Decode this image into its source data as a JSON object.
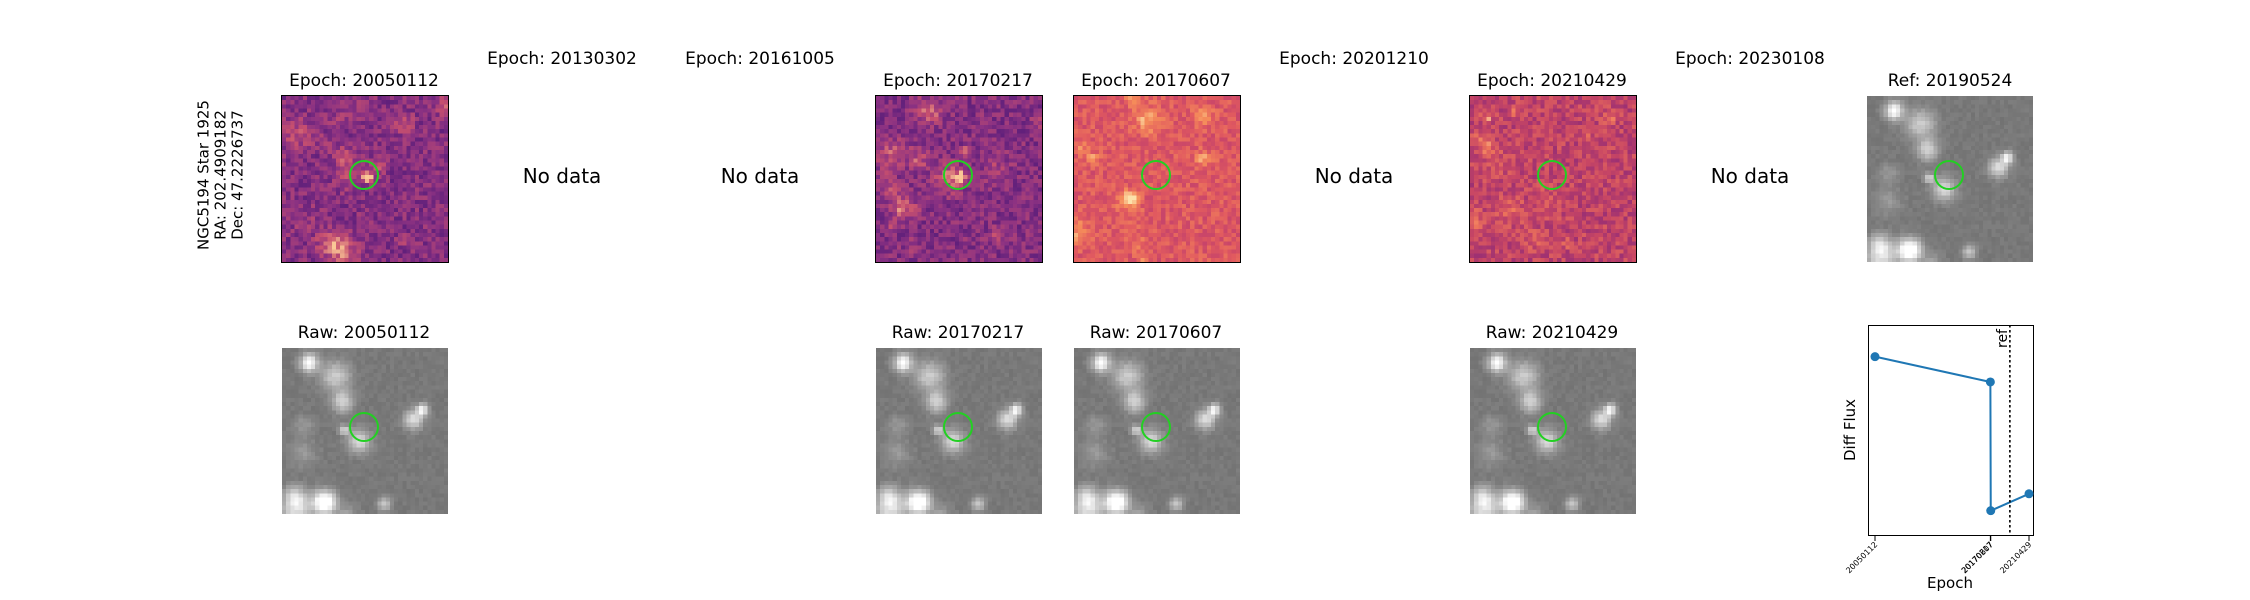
{
  "star": {
    "name": "NGC5194 Star 1925",
    "ra": "RA: 202.4909182",
    "dec": "Dec: 47.2226737"
  },
  "epochs": [
    {
      "title": "Epoch: 20050112",
      "raw_title": "Raw: 20050112",
      "has_data": true,
      "cmap": "magma-dark"
    },
    {
      "title": "Epoch: 20130302",
      "has_data": false,
      "nodata": "No data"
    },
    {
      "title": "Epoch: 20161005",
      "has_data": false,
      "nodata": "No data"
    },
    {
      "title": "Epoch: 20170217",
      "raw_title": "Raw: 20170217",
      "has_data": true,
      "cmap": "magma-dark"
    },
    {
      "title": "Epoch: 20170607",
      "raw_title": "Raw: 20170607",
      "has_data": true,
      "cmap": "magma-bright"
    },
    {
      "title": "Epoch: 20201210",
      "has_data": false,
      "nodata": "No data"
    },
    {
      "title": "Epoch: 20210429",
      "raw_title": "Raw: 20210429",
      "has_data": true,
      "cmap": "magma-mid"
    },
    {
      "title": "Epoch: 20230108",
      "has_data": false,
      "nodata": "No data"
    }
  ],
  "reference": {
    "title": "Ref: 20190524",
    "cmap": "gray"
  },
  "colors": {
    "aperture": "#22d022",
    "line": "#1f77b4"
  },
  "chart_data": {
    "type": "line",
    "x": [
      "20050112",
      "20170217",
      "20170607",
      "20210429"
    ],
    "values": [
      0.85,
      0.73,
      0.12,
      0.2
    ],
    "ylim": [
      0,
      1
    ],
    "xlabel": "Epoch",
    "ylabel": "Diff Flux",
    "ref_line": {
      "label": "ref",
      "at": "20190524"
    },
    "grid": false
  }
}
